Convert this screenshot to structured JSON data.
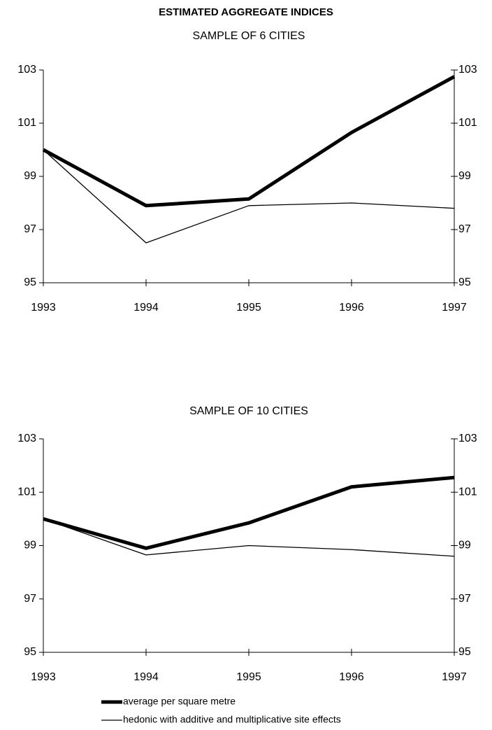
{
  "chart_data": [
    {
      "type": "line",
      "title": "ESTIMATED AGGREGATE INDICES",
      "subtitle": "SAMPLE OF 6 CITIES",
      "x": [
        1993,
        1994,
        1995,
        1996,
        1997
      ],
      "xlim": [
        1993,
        1997
      ],
      "xticks": [
        1993,
        1994,
        1995,
        1996,
        1997
      ],
      "ylim": [
        95,
        103
      ],
      "yticks": [
        95,
        97,
        99,
        101,
        103
      ],
      "series": [
        {
          "color": "#000000",
          "width": 5,
          "values": [
            100,
            97.9,
            98.15,
            100.65,
            102.75
          ]
        },
        {
          "color": "#000000",
          "width": 1.3,
          "values": [
            100,
            96.5,
            97.9,
            98.0,
            97.8
          ]
        }
      ]
    },
    {
      "type": "line",
      "subtitle": "SAMPLE OF 10 CITIES",
      "x": [
        1993,
        1994,
        1995,
        1996,
        1997
      ],
      "xlim": [
        1993,
        1997
      ],
      "xticks": [
        1993,
        1994,
        1995,
        1996,
        1997
      ],
      "ylim": [
        95,
        103
      ],
      "yticks": [
        95,
        97,
        99,
        101,
        103
      ],
      "series": [
        {
          "name": "average per square metre",
          "color": "#000000",
          "width": 5,
          "values": [
            100,
            98.9,
            99.85,
            101.2,
            101.55
          ]
        },
        {
          "name": "hedonic with additive and multiplicative site effects",
          "color": "#000000",
          "width": 1.3,
          "values": [
            100,
            98.65,
            99.0,
            98.85,
            98.6
          ]
        }
      ]
    }
  ]
}
